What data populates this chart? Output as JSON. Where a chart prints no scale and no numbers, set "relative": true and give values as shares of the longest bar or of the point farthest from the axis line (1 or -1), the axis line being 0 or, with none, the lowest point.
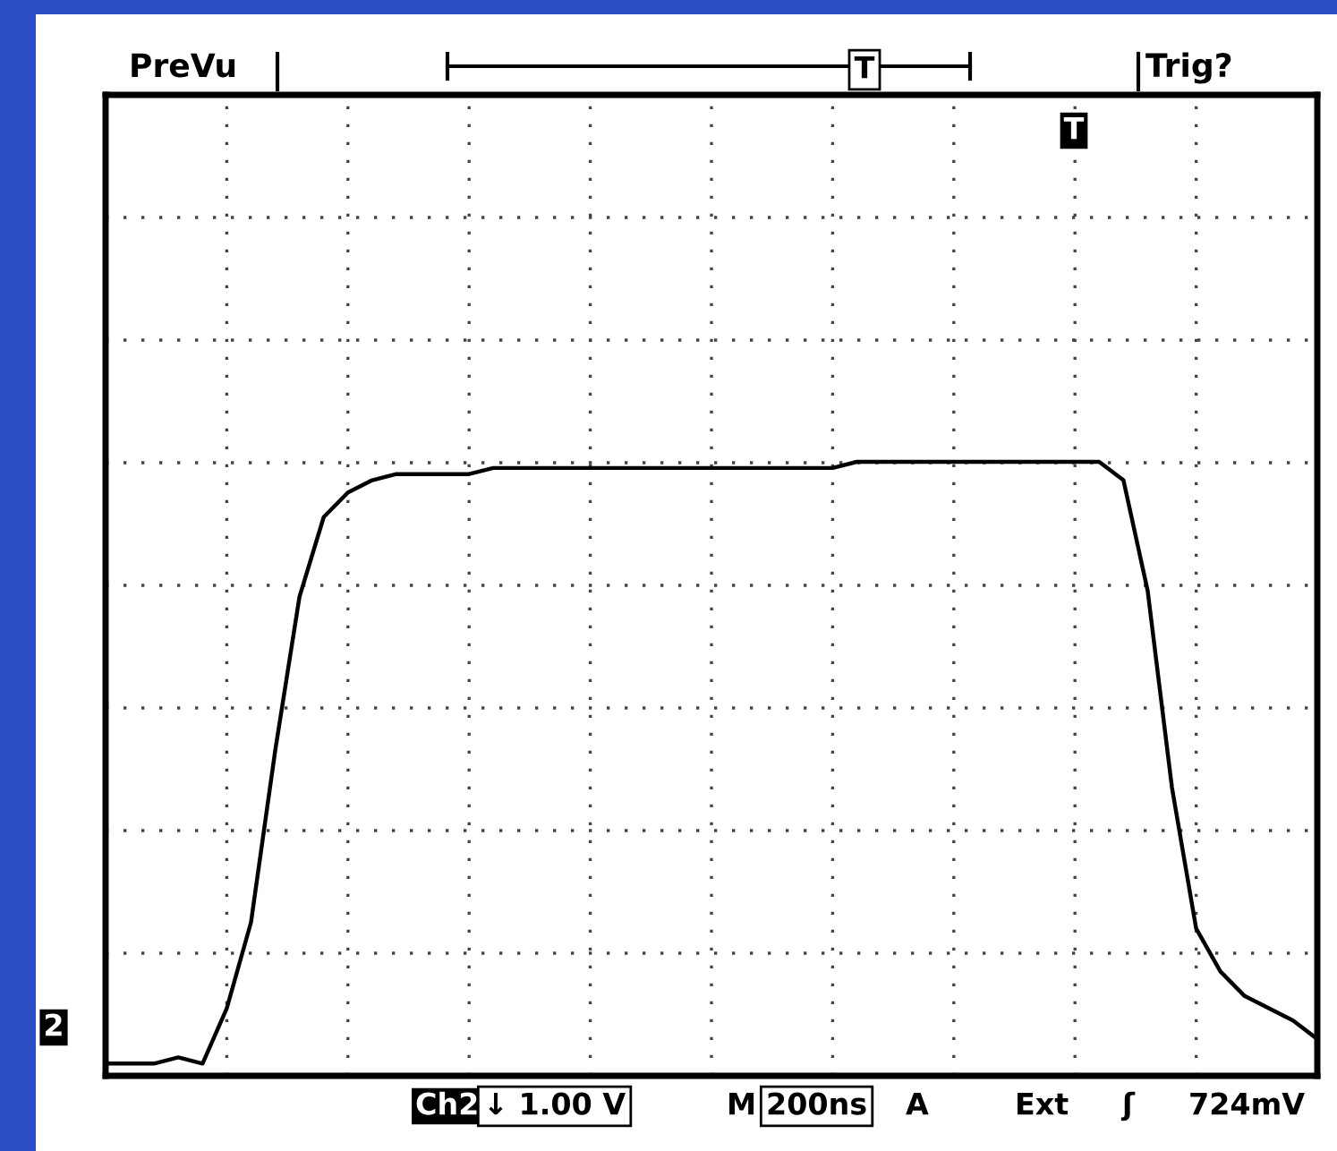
{
  "chart_data": {
    "type": "line",
    "relative": true,
    "grid": true,
    "legend": false,
    "line_style": "solid",
    "marker": "none",
    "categories": [
      null,
      null,
      null,
      null,
      null,
      null,
      null,
      null,
      null,
      null,
      null,
      null,
      null,
      null,
      null,
      null,
      null,
      null,
      null,
      null,
      null,
      null,
      null,
      null,
      null,
      null,
      null,
      null,
      null,
      null,
      null,
      null,
      null,
      null,
      null,
      null,
      null,
      null,
      null,
      null,
      null,
      null,
      null,
      null,
      null,
      null,
      null,
      null,
      null,
      null,
      null
    ],
    "series": [
      {
        "color": "#000000",
        "values": [
          0.02,
          0.02,
          0.02,
          0.03,
          0.02,
          0.11,
          0.25,
          0.53,
          0.78,
          0.91,
          0.95,
          0.97,
          0.98,
          0.98,
          0.98,
          0.98,
          0.99,
          0.99,
          0.99,
          0.99,
          0.99,
          0.99,
          0.99,
          0.99,
          0.99,
          0.99,
          0.99,
          0.99,
          0.99,
          0.99,
          0.99,
          1.0,
          1.0,
          1.0,
          1.0,
          1.0,
          1.0,
          1.0,
          1.0,
          1.0,
          1.0,
          1.0,
          0.97,
          0.79,
          0.47,
          0.24,
          0.17,
          0.13,
          0.11,
          0.09,
          0.06
        ]
      }
    ],
    "annotations": [
      "PreVu",
      "Trig?",
      "Ch2",
      "↓ 1.00 V",
      "M",
      "200ns",
      "A",
      "Ext",
      "ʃ",
      "724mV",
      "2",
      "T",
      "T"
    ]
  }
}
